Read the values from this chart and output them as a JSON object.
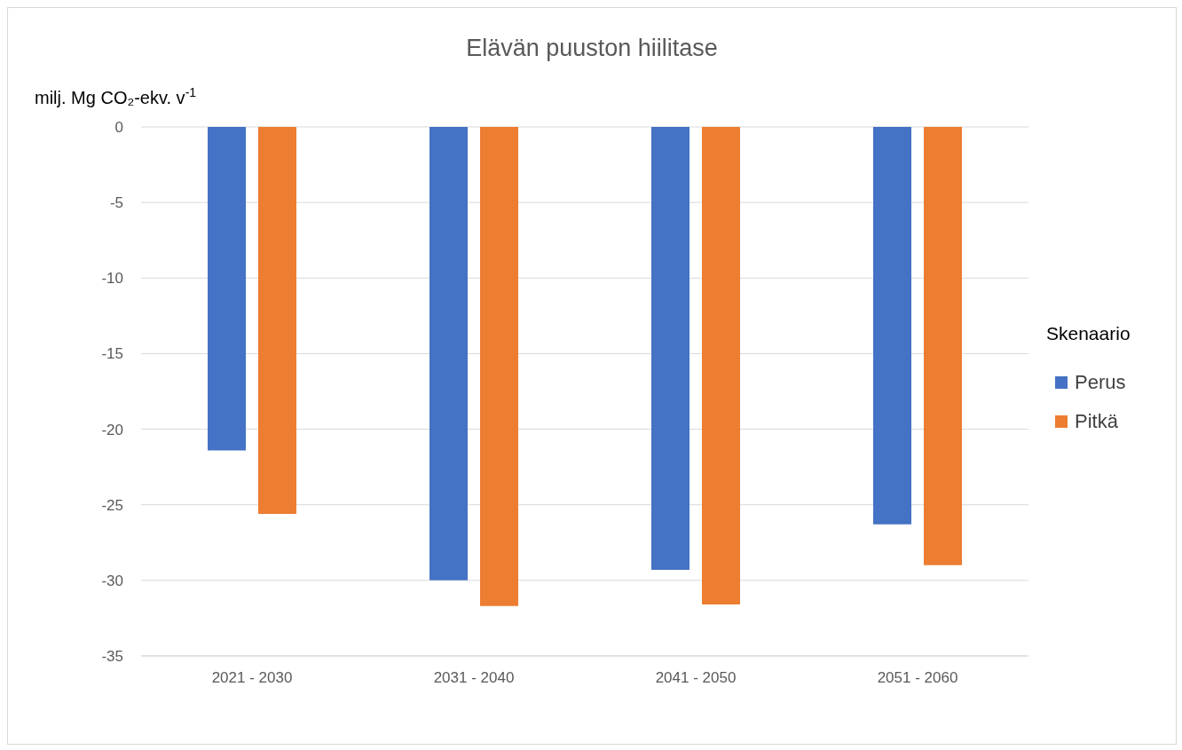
{
  "chart_data": {
    "type": "bar",
    "title": "Elävän puuston hiilitase",
    "ylabel": "milj. Mg CO₂-ekv. v$^{-1}$",
    "legend_title": "Skenaario",
    "categories": [
      "2021 - 2030",
      "2031 - 2040",
      "2041 - 2050",
      "2051 - 2060"
    ],
    "series": [
      {
        "name": "Perus",
        "color": "#4472c4",
        "values": [
          -21.4,
          -30.0,
          -29.3,
          -26.3
        ]
      },
      {
        "name": "Pitkä",
        "color": "#ed7d31",
        "values": [
          -25.6,
          -31.7,
          -31.6,
          -29.0
        ]
      }
    ],
    "ylim": [
      -35,
      0
    ],
    "yticks": [
      0,
      -5,
      -10,
      -15,
      -20,
      -25,
      -30,
      -35
    ],
    "grid": "y",
    "legend": "right"
  }
}
